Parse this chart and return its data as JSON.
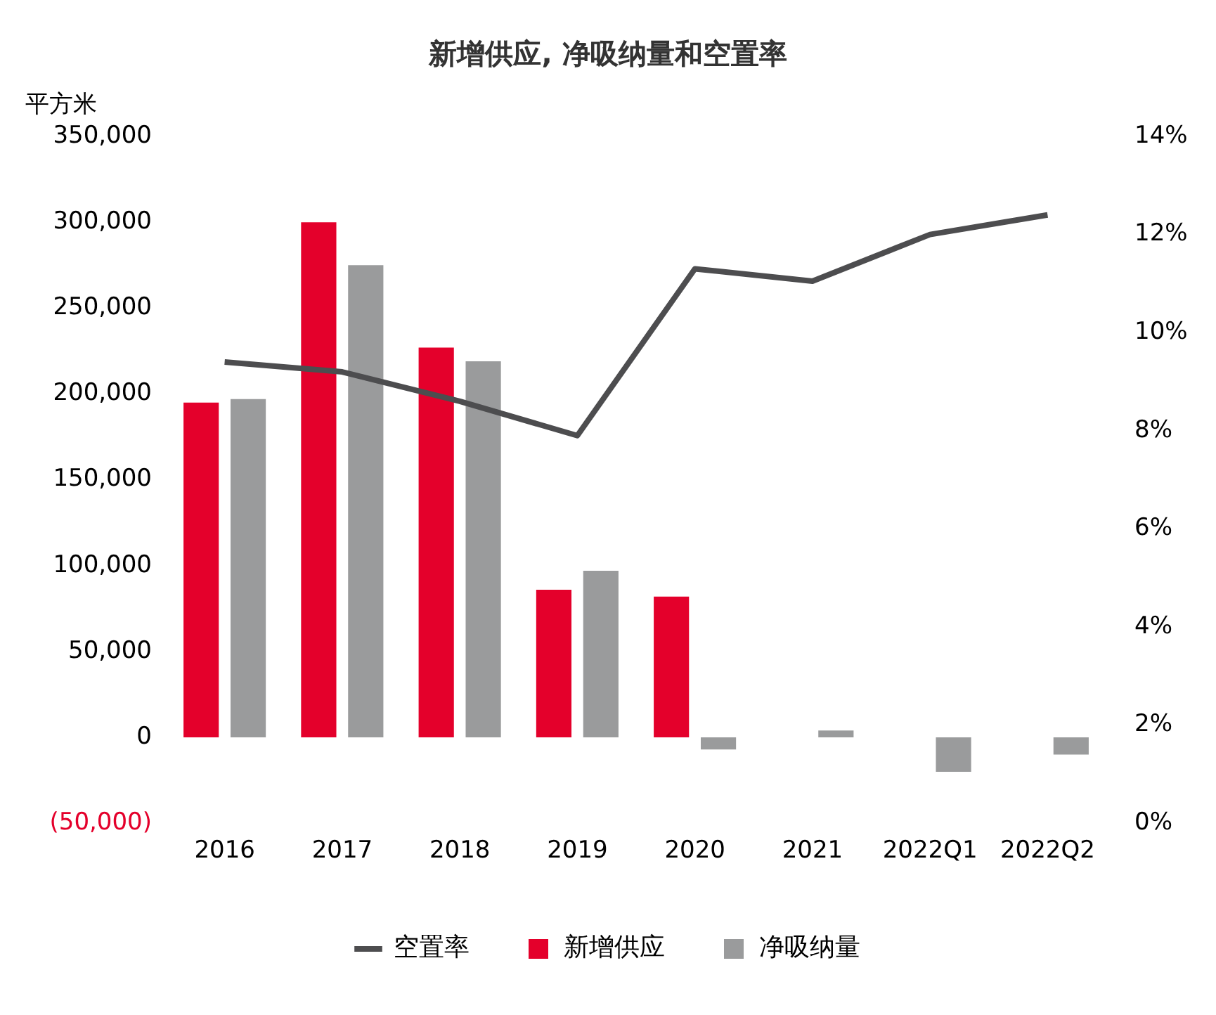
{
  "chart_data": {
    "type": "bar",
    "title": "新增供应, 净吸纳量和空置率",
    "ylabel": "平方米",
    "categories": [
      "2016",
      "2017",
      "2018",
      "2019",
      "2020",
      "2021",
      "2022Q1",
      "2022Q2"
    ],
    "series": [
      {
        "name": "新增供应",
        "color": "#e4002b",
        "values": [
          195000,
          300000,
          227000,
          86000,
          82000,
          null,
          null,
          null
        ]
      },
      {
        "name": "净吸纳量",
        "color": "#9a9b9c",
        "values": [
          197000,
          275000,
          219000,
          97000,
          -7000,
          4000,
          -20000,
          -10000
        ]
      },
      {
        "name": "空置率",
        "type": "line",
        "axis": "y2",
        "color": "#4d4d4f",
        "values": [
          9.4,
          9.2,
          8.6,
          7.9,
          11.3,
          11.05,
          12.0,
          12.4
        ]
      }
    ],
    "ylim": [
      -50000,
      350000
    ],
    "yticks": [
      {
        "value": -50000,
        "label": "(50,000)"
      },
      {
        "value": 0,
        "label": "0"
      },
      {
        "value": 50000,
        "label": "50,000"
      },
      {
        "value": 100000,
        "label": "100,000"
      },
      {
        "value": 150000,
        "label": "150,000"
      },
      {
        "value": 200000,
        "label": "200,000"
      },
      {
        "value": 250000,
        "label": "250,000"
      },
      {
        "value": 300000,
        "label": "300,000"
      },
      {
        "value": 350000,
        "label": "350,000"
      }
    ],
    "y2lim": [
      0,
      14
    ],
    "y2ticks": [
      {
        "value": 0,
        "label": "0%"
      },
      {
        "value": 2,
        "label": "2%"
      },
      {
        "value": 4,
        "label": "4%"
      },
      {
        "value": 6,
        "label": "6%"
      },
      {
        "value": 8,
        "label": "8%"
      },
      {
        "value": 10,
        "label": "10%"
      },
      {
        "value": 12,
        "label": "12%"
      },
      {
        "value": 14,
        "label": "14%"
      }
    ],
    "grid": false,
    "legend": "bottom",
    "marker": "none"
  }
}
